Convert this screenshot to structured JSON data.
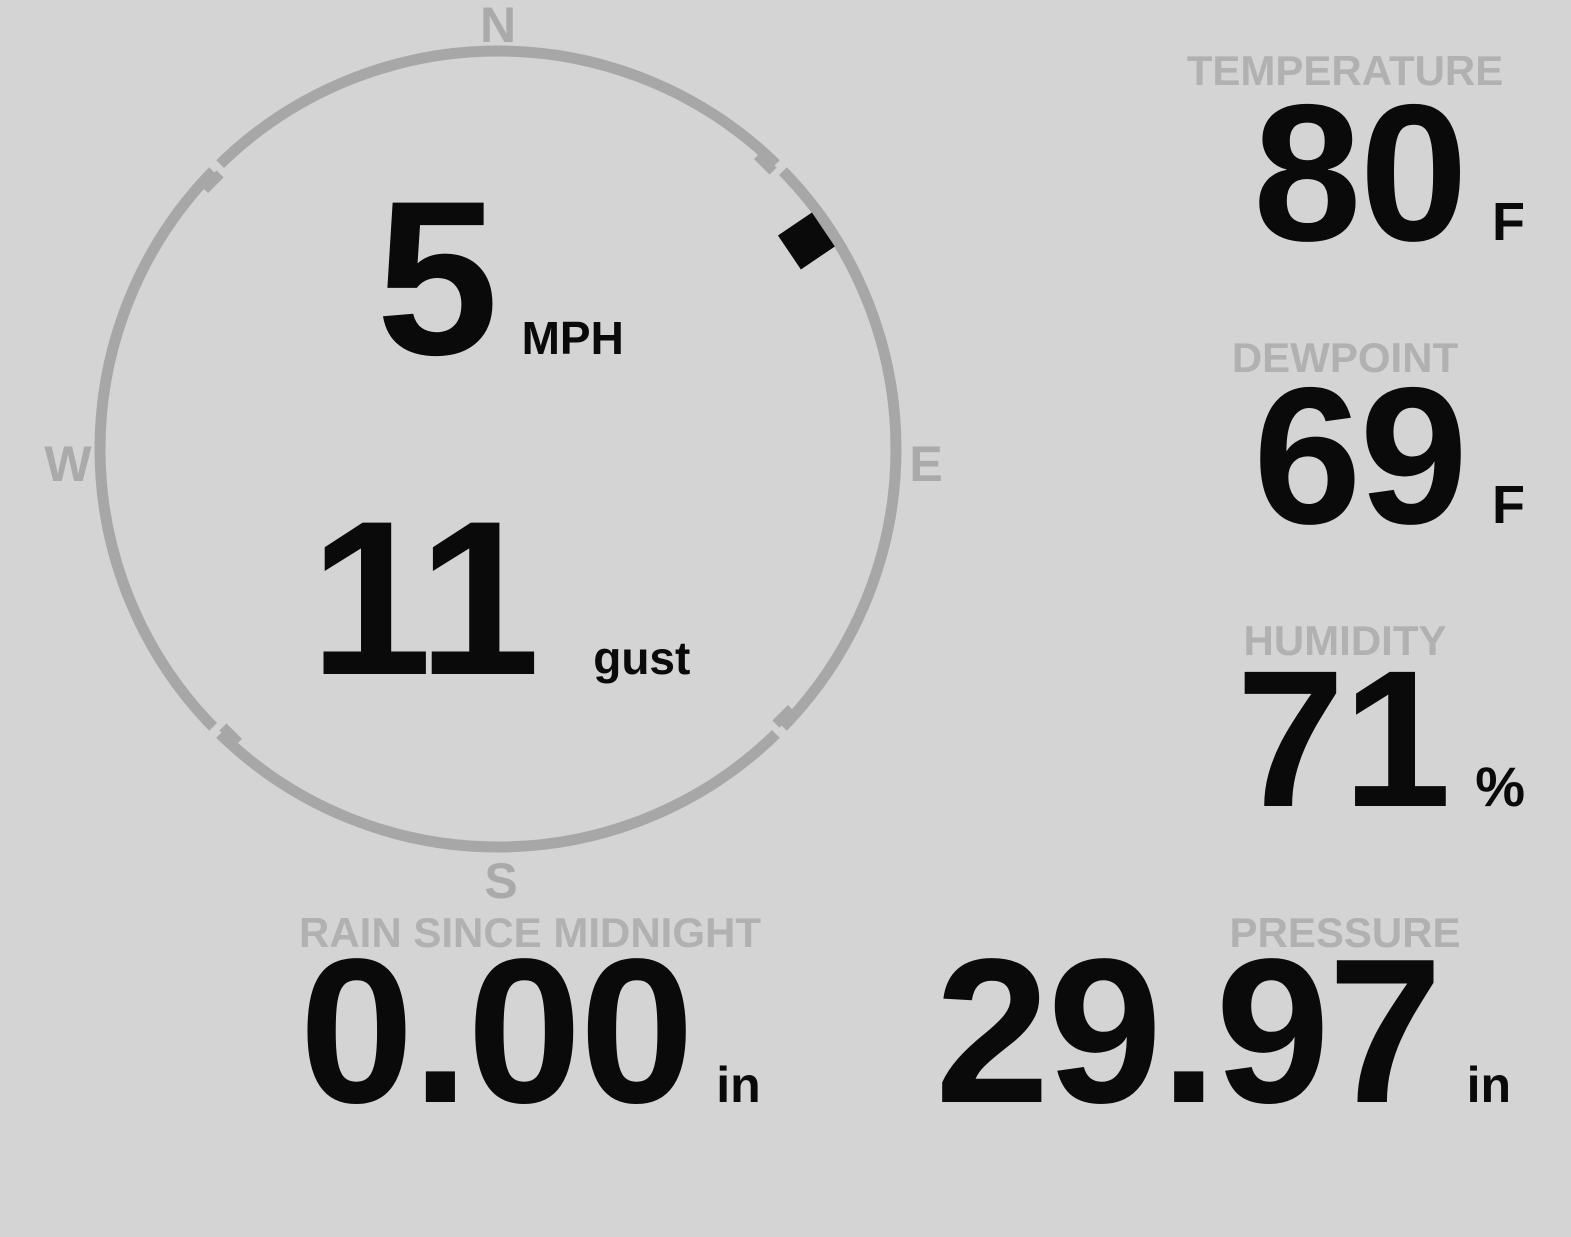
{
  "theme": {
    "background": "#d4d4d4",
    "dial_color": "#a7a7a7",
    "cardinal_color": "#aaaaaa",
    "label_color": "#b1b1b1",
    "value_color": "#0a0a0a",
    "marker_color": "#000000"
  },
  "compass": {
    "cardinals": {
      "north": "N",
      "east": "E",
      "south": "S",
      "west": "W"
    },
    "wind_direction_deg": 56,
    "speed": {
      "value": "5",
      "unit": "MPH"
    },
    "gust": {
      "value": "11",
      "unit": "gust"
    }
  },
  "metrics": {
    "temperature": {
      "label": "TEMPERATURE",
      "value": "80",
      "unit": "F"
    },
    "dewpoint": {
      "label": "DEWPOINT",
      "value": "69",
      "unit": "F"
    },
    "humidity": {
      "label": "HUMIDITY",
      "value": "71",
      "unit": "%"
    },
    "rain": {
      "label": "RAIN SINCE MIDNIGHT",
      "value": "0.00",
      "unit": "in"
    },
    "pressure": {
      "label": "PRESSURE",
      "value": "29.97",
      "unit": "in"
    }
  }
}
